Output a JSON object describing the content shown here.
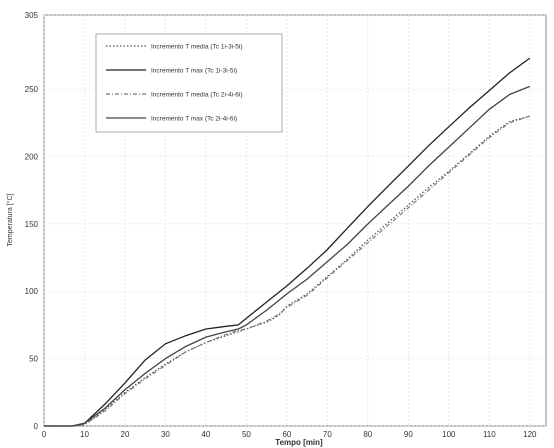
{
  "chart_data": {
    "type": "line",
    "title": "",
    "xlabel": "Tempo [min]",
    "ylabel": "Temperatura [°C]",
    "xlim": [
      0,
      124
    ],
    "ylim": [
      0,
      305
    ],
    "x_ticks": [
      0,
      10,
      20,
      30,
      40,
      50,
      60,
      70,
      80,
      90,
      100,
      110,
      120
    ],
    "y_ticks": [
      0,
      50,
      100,
      150,
      200,
      250,
      305
    ],
    "grid": true,
    "legend_position": "top-left",
    "series": [
      {
        "name": "Incremento T media (Tc 1i-3i-5i)",
        "style": "dotted",
        "color": "#555555",
        "points": [
          [
            0,
            0
          ],
          [
            7,
            0
          ],
          [
            10,
            1
          ],
          [
            15,
            12
          ],
          [
            20,
            25
          ],
          [
            25,
            36
          ],
          [
            30,
            46
          ],
          [
            35,
            55
          ],
          [
            40,
            62
          ],
          [
            45,
            67
          ],
          [
            48,
            70
          ],
          [
            50,
            72
          ],
          [
            55,
            77
          ],
          [
            58,
            82
          ],
          [
            60,
            89
          ],
          [
            65,
            98
          ],
          [
            70,
            111
          ],
          [
            75,
            124
          ],
          [
            80,
            138
          ],
          [
            85,
            151
          ],
          [
            90,
            164
          ],
          [
            95,
            177
          ],
          [
            100,
            189
          ],
          [
            105,
            202
          ],
          [
            110,
            215
          ],
          [
            115,
            226
          ],
          [
            120,
            230
          ]
        ]
      },
      {
        "name": "Incremento T max (Tc 1i-3i-5i)",
        "style": "solid",
        "color": "#222222",
        "points": [
          [
            0,
            0
          ],
          [
            7,
            0
          ],
          [
            10,
            2
          ],
          [
            15,
            16
          ],
          [
            20,
            32
          ],
          [
            25,
            49
          ],
          [
            30,
            61
          ],
          [
            35,
            67
          ],
          [
            40,
            72
          ],
          [
            45,
            74
          ],
          [
            48,
            75
          ],
          [
            50,
            80
          ],
          [
            55,
            92
          ],
          [
            60,
            104
          ],
          [
            65,
            117
          ],
          [
            70,
            131
          ],
          [
            75,
            147
          ],
          [
            80,
            163
          ],
          [
            85,
            178
          ],
          [
            90,
            193
          ],
          [
            95,
            208
          ],
          [
            100,
            222
          ],
          [
            105,
            236
          ],
          [
            110,
            249
          ],
          [
            115,
            262
          ],
          [
            120,
            273
          ]
        ]
      },
      {
        "name": "Incremento T media (Tc 2i-4i-6i)",
        "style": "dashdot",
        "color": "#777777",
        "points": [
          [
            0,
            0
          ],
          [
            7,
            0
          ],
          [
            10,
            1
          ],
          [
            15,
            11
          ],
          [
            20,
            24
          ],
          [
            25,
            35
          ],
          [
            30,
            45
          ],
          [
            35,
            55
          ],
          [
            40,
            62
          ],
          [
            45,
            68
          ],
          [
            48,
            71
          ],
          [
            50,
            72
          ],
          [
            55,
            78
          ],
          [
            58,
            83
          ],
          [
            60,
            88
          ],
          [
            65,
            97
          ],
          [
            70,
            110
          ],
          [
            75,
            123
          ],
          [
            80,
            136
          ],
          [
            85,
            149
          ],
          [
            90,
            162
          ],
          [
            95,
            175
          ],
          [
            100,
            188
          ],
          [
            105,
            201
          ],
          [
            110,
            214
          ],
          [
            115,
            225
          ],
          [
            120,
            230
          ]
        ]
      },
      {
        "name": "Incremento T max (Tc 2i-4i-6i)",
        "style": "solid",
        "color": "#444444",
        "points": [
          [
            0,
            0
          ],
          [
            7,
            0
          ],
          [
            10,
            2
          ],
          [
            15,
            13
          ],
          [
            20,
            27
          ],
          [
            25,
            39
          ],
          [
            30,
            50
          ],
          [
            35,
            59
          ],
          [
            40,
            66
          ],
          [
            45,
            70
          ],
          [
            48,
            72
          ],
          [
            50,
            75
          ],
          [
            55,
            86
          ],
          [
            60,
            98
          ],
          [
            65,
            109
          ],
          [
            70,
            122
          ],
          [
            75,
            135
          ],
          [
            80,
            150
          ],
          [
            85,
            164
          ],
          [
            90,
            178
          ],
          [
            95,
            193
          ],
          [
            100,
            207
          ],
          [
            105,
            221
          ],
          [
            110,
            235
          ],
          [
            115,
            246
          ],
          [
            120,
            252
          ]
        ]
      }
    ]
  }
}
